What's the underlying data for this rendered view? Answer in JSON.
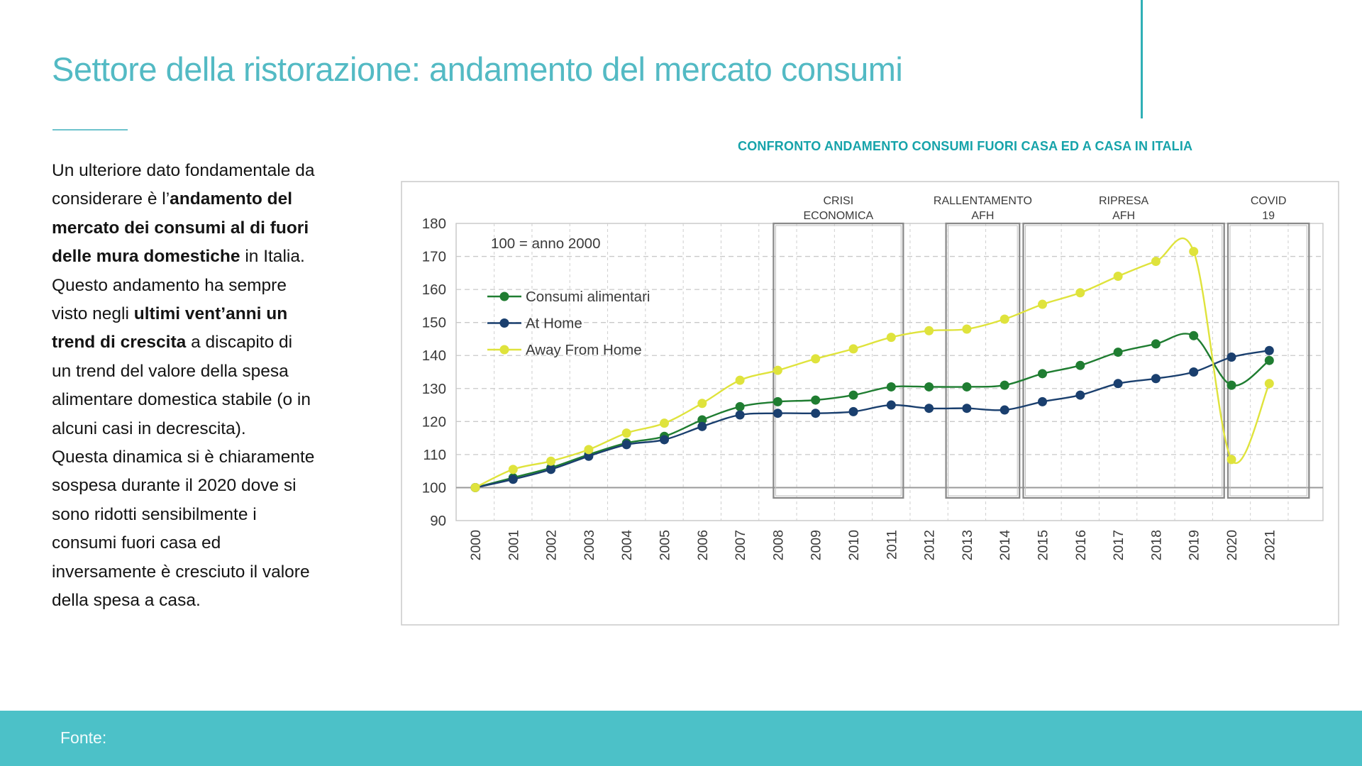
{
  "slide": {
    "title": "Settore della ristorazione: andamento del mercato consumi",
    "footer_label": "Fonte:"
  },
  "colors": {
    "title_teal": "#53bac4",
    "chart_title_teal": "#16a3aa",
    "footer_teal": "#4cc1c8",
    "accent_line_teal": "#2fb0b6",
    "body_text": "#141414"
  },
  "paragraph": {
    "lines": [
      [
        {
          "t": "Un ulteriore dato fondamentale da",
          "b": false
        }
      ],
      [
        {
          "t": "considerare è l’",
          "b": false
        },
        {
          "t": "andamento del",
          "b": true
        }
      ],
      [
        {
          "t": "mercato dei consumi al di fuori",
          "b": true
        }
      ],
      [
        {
          "t": "delle mura domestiche",
          "b": true
        },
        {
          "t": " in Italia.",
          "b": false
        }
      ],
      [
        {
          "t": "Questo andamento ha sempre",
          "b": false
        }
      ],
      [
        {
          "t": "visto negli ",
          "b": false
        },
        {
          "t": "ultimi vent’anni un",
          "b": true
        }
      ],
      [
        {
          "t": "trend di crescita",
          "b": true
        },
        {
          "t": " a discapito di",
          "b": false
        }
      ],
      [
        {
          "t": "un trend del valore della spesa",
          "b": false
        }
      ],
      [
        {
          "t": "alimentare domestica stabile (o in",
          "b": false
        }
      ],
      [
        {
          "t": "alcuni casi in decrescita).",
          "b": false
        }
      ],
      [
        {
          "t": "Questa dinamica si è chiaramente",
          "b": false
        }
      ],
      [
        {
          "t": "sospesa durante il 2020 dove si",
          "b": false
        }
      ],
      [
        {
          "t": "sono ridotti sensibilmente i",
          "b": false
        }
      ],
      [
        {
          "t": "consumi fuori casa ed",
          "b": false
        }
      ],
      [
        {
          "t": "inversamente è cresciuto il valore",
          "b": false
        }
      ],
      [
        {
          "t": "della spesa a casa.",
          "b": false
        }
      ]
    ]
  },
  "chart_data": {
    "type": "line",
    "title": "CONFRONTO ANDAMENTO CONSUMI FUORI CASA ED A CASA IN ITALIA",
    "note": "100 = anno 2000",
    "x": [
      2000,
      2001,
      2002,
      2003,
      2004,
      2005,
      2006,
      2007,
      2008,
      2009,
      2010,
      2011,
      2012,
      2013,
      2014,
      2015,
      2016,
      2017,
      2018,
      2019,
      2020,
      2021
    ],
    "series": [
      {
        "name": "Consumi alimentari",
        "color": "#1f7d31",
        "values": [
          100,
          103,
          106,
          110,
          113.5,
          115.5,
          120.5,
          124.5,
          126,
          126.5,
          128,
          130.5,
          130.5,
          130.5,
          131,
          134.5,
          137,
          141,
          143.5,
          146,
          131,
          138.5
        ]
      },
      {
        "name": "At Home",
        "color": "#1a3f6e",
        "values": [
          100,
          102.5,
          105.5,
          109.5,
          113,
          114.5,
          118.5,
          122,
          122.5,
          122.5,
          123,
          125,
          124,
          124,
          123.5,
          126,
          128,
          131.5,
          133,
          135,
          139.5,
          141.5
        ]
      },
      {
        "name": "Away From Home",
        "color": "#dfe33c",
        "values": [
          100,
          105.5,
          108,
          111.5,
          116.5,
          119.5,
          125.5,
          132.5,
          135.5,
          139,
          142,
          145.5,
          147.5,
          148,
          151,
          155.5,
          159,
          164,
          168.5,
          171.5,
          108.5,
          131.5
        ]
      }
    ],
    "ylim": [
      90,
      180
    ],
    "yticks": [
      90,
      100,
      110,
      120,
      130,
      140,
      150,
      160,
      170,
      180
    ],
    "baseline": 100,
    "grid": "dashed",
    "legend_position": "inside-top-left",
    "annotations": [
      {
        "line1": "CRISI",
        "line2": "ECONOMICA",
        "from": 2008,
        "to": 2011
      },
      {
        "line1": "RALLENTAMENTO",
        "line2": "AFH",
        "from": 2012,
        "to": 2014
      },
      {
        "line1": "RIPRESA",
        "line2": "AFH",
        "from": 2015,
        "to": 2019
      },
      {
        "line1": "COVID",
        "line2": "19",
        "from": 2020,
        "to": 2021
      }
    ]
  }
}
